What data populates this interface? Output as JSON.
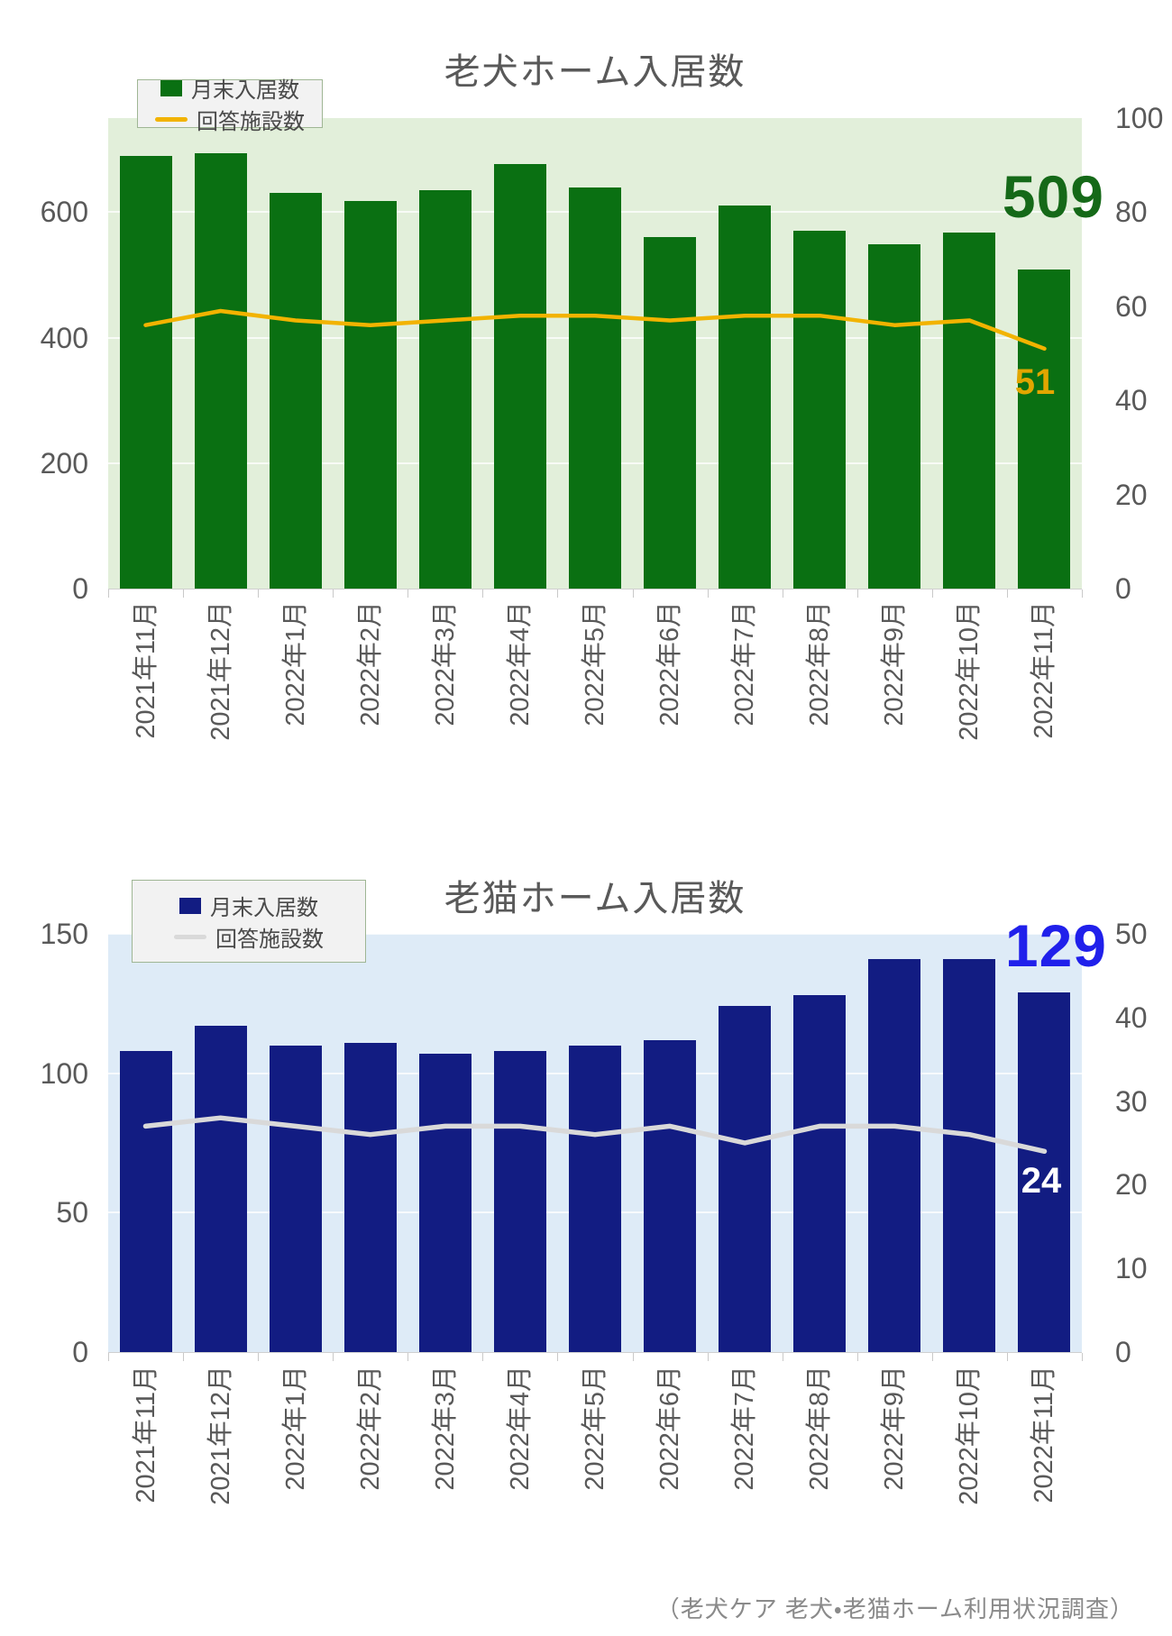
{
  "footer": "（老犬ケア 老犬・老猫ホーム利用状況調査）",
  "chart_data": [
    {
      "id": "dog-home",
      "type": "bar",
      "title": "老犬ホーム入居数",
      "categories": [
        "2021年11月",
        "2021年12月",
        "2022年1月",
        "2022年2月",
        "2022年3月",
        "2022年4月",
        "2022年5月",
        "2022年6月",
        "2022年7月",
        "2022年8月",
        "2022年9月",
        "2022年10月",
        "2022年11月"
      ],
      "series": [
        {
          "name": "月末入居数",
          "type": "bar",
          "axis": "left",
          "values": [
            690,
            694,
            631,
            618,
            635,
            677,
            639,
            560,
            611,
            570,
            549,
            568,
            509
          ],
          "color": "#0a7012"
        },
        {
          "name": "回答施設数",
          "type": "line",
          "axis": "right",
          "values": [
            56,
            59,
            57,
            56,
            57,
            58,
            58,
            57,
            58,
            58,
            56,
            57,
            51
          ],
          "color": "#f2b300"
        }
      ],
      "left_axis": {
        "ticks": [
          0,
          200,
          400,
          600
        ],
        "min": 0,
        "max": 750
      },
      "right_axis": {
        "ticks": [
          0,
          20,
          40,
          60,
          80,
          100
        ],
        "min": 0,
        "max": 100
      },
      "grid": true,
      "legend_position": "top-left",
      "plot_bg_color": "#e2efda",
      "annotations": {
        "last_bar_label": "509",
        "last_bar_color": "#156918",
        "last_line_label": "51",
        "last_line_color": "#e2a600"
      }
    },
    {
      "id": "cat-home",
      "type": "bar",
      "title": "老猫ホーム入居数",
      "categories": [
        "2021年11月",
        "2021年12月",
        "2022年1月",
        "2022年2月",
        "2022年3月",
        "2022年4月",
        "2022年5月",
        "2022年6月",
        "2022年7月",
        "2022年8月",
        "2022年9月",
        "2022年10月",
        "2022年11月"
      ],
      "series": [
        {
          "name": "月末入居数",
          "type": "bar",
          "axis": "left",
          "values": [
            108,
            117,
            110,
            111,
            107,
            108,
            110,
            112,
            124,
            128,
            141,
            141,
            129
          ],
          "color": "#121c82"
        },
        {
          "name": "回答施設数",
          "type": "line",
          "axis": "right",
          "values": [
            27,
            28,
            27,
            26,
            27,
            27,
            26,
            27,
            25,
            27,
            27,
            26,
            24
          ],
          "color": "#d9d9d9"
        }
      ],
      "left_axis": {
        "ticks": [
          0,
          50,
          100,
          150
        ],
        "min": 0,
        "max": 150
      },
      "right_axis": {
        "ticks": [
          0,
          10,
          20,
          30,
          40,
          50
        ],
        "min": 0,
        "max": 50
      },
      "grid": true,
      "legend_position": "top-left",
      "plot_bg_color": "#deebf7",
      "annotations": {
        "last_bar_label": "129",
        "last_bar_color": "#2020eb",
        "last_line_label": "24",
        "last_line_color": "#ffffff"
      }
    }
  ]
}
